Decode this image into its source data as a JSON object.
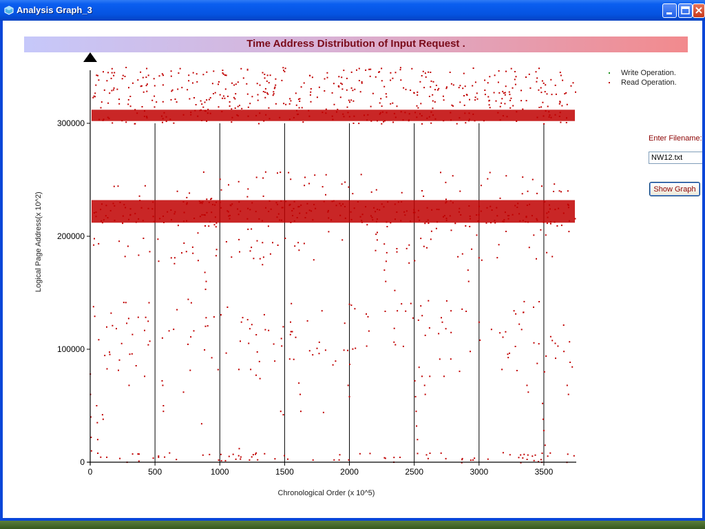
{
  "window": {
    "title": "Analysis Graph_3",
    "controls": [
      "minimize",
      "maximize",
      "close"
    ],
    "accent_color": "#0a46d8"
  },
  "header": {
    "banner_title": "Time Address Distribution of Input Request ."
  },
  "legend": {
    "items": [
      {
        "label": "Write Operation.",
        "color": "#1a8f1a"
      },
      {
        "label": "Read Operation.",
        "color": "#c00000"
      }
    ]
  },
  "form": {
    "filename_label": "Enter Filename:-",
    "filename_value": "NW12.txt",
    "show_button": "Show Graph"
  },
  "chart_data": {
    "type": "scatter",
    "title": "Time Address Distribution of Input Request .",
    "xlabel": "Chronological Order (x 10^5)",
    "ylabel": "Logical Page Address(x 10^2)",
    "xlim": [
      0,
      3750
    ],
    "ylim": [
      0,
      350000
    ],
    "x_ticks": [
      0,
      500,
      1000,
      1500,
      2000,
      2500,
      3000,
      3500
    ],
    "y_ticks": [
      0,
      100000,
      200000,
      300000
    ],
    "point_color": "#c00000",
    "grid": true,
    "legend_position": "top-right",
    "series": [
      {
        "name": "Read Operation.",
        "address_bands": [
          {
            "y_range": [
              0,
              9000
            ],
            "density": "high"
          },
          {
            "y_range": [
              80000,
              145000
            ],
            "density": "medium"
          },
          {
            "y_range": [
              175000,
              258000
            ],
            "density": "medium"
          },
          {
            "y_range": [
              212000,
              232000
            ],
            "density": "very-high"
          },
          {
            "y_range": [
              300000,
              350000
            ],
            "density": "very-high"
          }
        ],
        "sparse_points": [
          [
            1,
            78000
          ],
          [
            2,
            60000
          ],
          [
            5,
            40000
          ],
          [
            7,
            22000
          ],
          [
            10,
            10000
          ],
          [
            50,
            50000
          ],
          [
            55,
            35000
          ],
          [
            58,
            20000
          ],
          [
            95,
            42000
          ],
          [
            100,
            38000
          ],
          [
            300,
            68000
          ],
          [
            420,
            76000
          ],
          [
            555,
            72000
          ],
          [
            560,
            68000
          ],
          [
            565,
            50000
          ],
          [
            565,
            45000
          ],
          [
            720,
            62000
          ],
          [
            860,
            34000
          ],
          [
            885,
            168000
          ],
          [
            895,
            160000
          ],
          [
            890,
            153000
          ],
          [
            1150,
            12000
          ],
          [
            1280,
            77000
          ],
          [
            1310,
            74000
          ],
          [
            1470,
            45000
          ],
          [
            1490,
            42000
          ],
          [
            1610,
            70000
          ],
          [
            1620,
            60000
          ],
          [
            1625,
            45000
          ],
          [
            1800,
            44000
          ],
          [
            1990,
            68000
          ],
          [
            2000,
            58000
          ],
          [
            2270,
            170000
          ],
          [
            2280,
            160000
          ],
          [
            2350,
            152000
          ],
          [
            2505,
            72000
          ],
          [
            2510,
            58000
          ],
          [
            2515,
            45000
          ],
          [
            2518,
            32000
          ],
          [
            2525,
            20000
          ],
          [
            2560,
            76000
          ],
          [
            2580,
            68000
          ],
          [
            2585,
            60000
          ],
          [
            2620,
            76000
          ],
          [
            2730,
            76000
          ],
          [
            2915,
            170000
          ],
          [
            2920,
            160000
          ],
          [
            3370,
            68000
          ],
          [
            3380,
            62000
          ],
          [
            3490,
            52000
          ],
          [
            3495,
            38000
          ],
          [
            3500,
            28000
          ],
          [
            3510,
            15000
          ],
          [
            3680,
            68000
          ],
          [
            3690,
            60000
          ]
        ]
      }
    ]
  }
}
